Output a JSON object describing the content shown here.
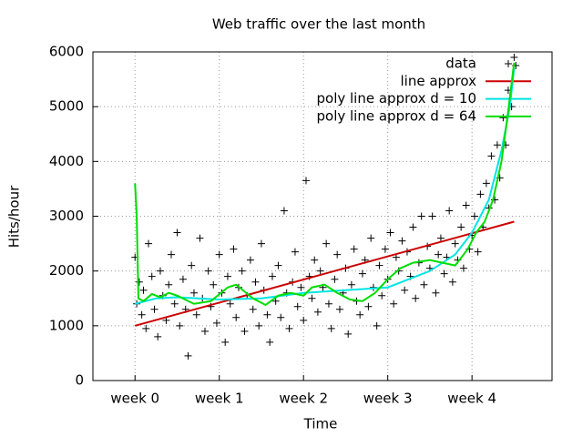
{
  "chart_data": {
    "type": "line",
    "title": "Web traffic over the last month",
    "x_label": "Time",
    "y_label": "Hits/hour",
    "xlim": [
      -0.5,
      4.95
    ],
    "ylim": [
      0,
      6000
    ],
    "xticks": [
      {
        "value": 0,
        "label": "week 0"
      },
      {
        "value": 1,
        "label": "week 1"
      },
      {
        "value": 2,
        "label": "week 2"
      },
      {
        "value": 3,
        "label": "week 3"
      },
      {
        "value": 4,
        "label": "week 4"
      }
    ],
    "yticks": [
      0,
      1000,
      2000,
      3000,
      4000,
      5000,
      6000
    ],
    "grid": true,
    "legend": "top-right",
    "series": [
      {
        "name": "data",
        "mode": "points",
        "color": "#000000",
        "x": [
          0.0,
          0.02,
          0.05,
          0.08,
          0.1,
          0.13,
          0.16,
          0.2,
          0.23,
          0.27,
          0.3,
          0.33,
          0.37,
          0.4,
          0.43,
          0.47,
          0.5,
          0.53,
          0.57,
          0.6,
          0.63,
          0.67,
          0.7,
          0.73,
          0.77,
          0.8,
          0.83,
          0.87,
          0.9,
          0.93,
          0.97,
          1.0,
          1.03,
          1.07,
          1.1,
          1.13,
          1.17,
          1.2,
          1.23,
          1.27,
          1.3,
          1.33,
          1.37,
          1.4,
          1.43,
          1.47,
          1.5,
          1.53,
          1.57,
          1.6,
          1.63,
          1.67,
          1.7,
          1.73,
          1.77,
          1.8,
          1.83,
          1.87,
          1.9,
          1.93,
          1.97,
          2.0,
          2.03,
          2.07,
          2.1,
          2.13,
          2.17,
          2.2,
          2.23,
          2.27,
          2.3,
          2.33,
          2.37,
          2.4,
          2.43,
          2.47,
          2.5,
          2.53,
          2.57,
          2.6,
          2.63,
          2.67,
          2.7,
          2.73,
          2.77,
          2.8,
          2.83,
          2.87,
          2.9,
          2.93,
          2.97,
          3.0,
          3.03,
          3.07,
          3.1,
          3.13,
          3.17,
          3.2,
          3.23,
          3.27,
          3.3,
          3.33,
          3.37,
          3.4,
          3.43,
          3.47,
          3.5,
          3.53,
          3.57,
          3.6,
          3.63,
          3.67,
          3.7,
          3.73,
          3.77,
          3.8,
          3.83,
          3.87,
          3.9,
          3.93,
          3.97,
          4.0,
          4.03,
          4.07,
          4.1,
          4.13,
          4.17,
          4.2,
          4.23,
          4.27,
          4.3,
          4.33,
          4.37,
          4.4,
          4.43,
          4.47,
          4.5,
          4.52
        ],
        "values": [
          2250,
          1400,
          1800,
          1200,
          1650,
          950,
          2500,
          1900,
          1300,
          800,
          2000,
          1550,
          1100,
          1750,
          2300,
          1400,
          2700,
          1000,
          1850,
          1300,
          450,
          2100,
          1600,
          1200,
          2600,
          1500,
          900,
          2000,
          1350,
          1750,
          1050,
          2300,
          1600,
          700,
          1900,
          1400,
          2400,
          1150,
          1700,
          2000,
          900,
          1550,
          2200,
          1300,
          1800,
          1000,
          2500,
          1650,
          1200,
          700,
          1900,
          1450,
          2100,
          1150,
          3100,
          1600,
          950,
          1800,
          2350,
          1350,
          1700,
          1100,
          3650,
          1900,
          1500,
          2200,
          1250,
          2000,
          1700,
          2500,
          1400,
          950,
          1850,
          2300,
          1300,
          1600,
          2050,
          850,
          1750,
          2400,
          1450,
          1200,
          1950,
          2200,
          1350,
          2600,
          1700,
          1000,
          2100,
          1550,
          2400,
          1850,
          2700,
          1400,
          2250,
          2000,
          2550,
          1650,
          2350,
          1900,
          2800,
          1500,
          2150,
          3000,
          1750,
          2450,
          2050,
          3000,
          1600,
          2300,
          2600,
          1950,
          2250,
          3100,
          1800,
          2500,
          2200,
          2800,
          2050,
          3200,
          2400,
          2650,
          3000,
          2350,
          3400,
          2800,
          3600,
          3150,
          4100,
          3300,
          4300,
          3700,
          4800,
          4300,
          5300,
          5000,
          5900,
          5750
        ]
      },
      {
        "name": "line approx",
        "mode": "lines",
        "color": "#cc0000",
        "x": [
          0,
          4.5
        ],
        "values": [
          1000,
          2900
        ]
      },
      {
        "name": "poly line approx d = 10",
        "mode": "lines",
        "color": "#00e5e5",
        "x": [
          0,
          0.25,
          0.5,
          1,
          1.5,
          2,
          2.5,
          3,
          3.5,
          3.8,
          4,
          4.2,
          4.35,
          4.45,
          4.5
        ],
        "values": [
          1400,
          1500,
          1520,
          1480,
          1500,
          1600,
          1650,
          1700,
          2000,
          2300,
          2700,
          3300,
          4200,
          5000,
          5700
        ]
      },
      {
        "name": "poly line approx d = 64",
        "mode": "lines",
        "color": "#00dd00",
        "x": [
          0,
          0.02,
          0.04,
          0.1,
          0.2,
          0.3,
          0.4,
          0.5,
          0.7,
          0.9,
          1.1,
          1.2,
          1.4,
          1.55,
          1.7,
          1.85,
          2,
          2.1,
          2.25,
          2.4,
          2.55,
          2.7,
          2.85,
          3,
          3.15,
          3.3,
          3.5,
          3.65,
          3.8,
          3.95,
          4.05,
          4.15,
          4.25,
          4.35,
          4.42,
          4.5
        ],
        "values": [
          3600,
          3000,
          1500,
          1450,
          1580,
          1520,
          1600,
          1550,
          1400,
          1450,
          1700,
          1750,
          1500,
          1380,
          1550,
          1600,
          1550,
          1700,
          1750,
          1600,
          1480,
          1450,
          1600,
          1850,
          2050,
          2150,
          2200,
          2150,
          2100,
          2400,
          2700,
          2900,
          3300,
          4000,
          4800,
          5800
        ]
      }
    ]
  }
}
